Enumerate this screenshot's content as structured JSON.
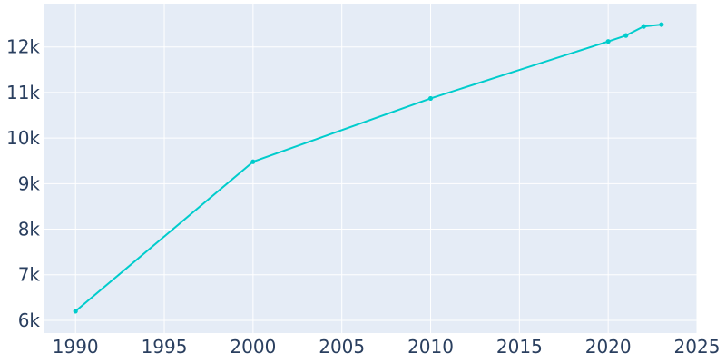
{
  "chart_data": {
    "type": "line",
    "title": "",
    "xlabel": "",
    "ylabel": "",
    "xlim": [
      1988.2,
      2025
    ],
    "ylim": [
      5720,
      12950
    ],
    "x_ticks": [
      1990,
      1995,
      2000,
      2005,
      2010,
      2015,
      2020,
      2025
    ],
    "x_tick_labels": [
      "1990",
      "1995",
      "2000",
      "2005",
      "2010",
      "2015",
      "2020",
      "2025"
    ],
    "y_ticks": [
      6000,
      7000,
      8000,
      9000,
      10000,
      11000,
      12000
    ],
    "y_tick_labels": [
      "6k",
      "7k",
      "8k",
      "9k",
      "10k",
      "11k",
      "12k"
    ],
    "grid": true,
    "legend": "none",
    "colors": {
      "plot_background": "#e5ecf6",
      "grid": "#ffffff",
      "line": "#00cccc",
      "tick_text": "#2a3f5f"
    },
    "series": [
      {
        "x": [
          1990,
          2000,
          2010,
          2020,
          2021,
          2022,
          2023
        ],
        "y": [
          6200,
          9480,
          10870,
          12120,
          12250,
          12450,
          12490
        ]
      }
    ]
  }
}
